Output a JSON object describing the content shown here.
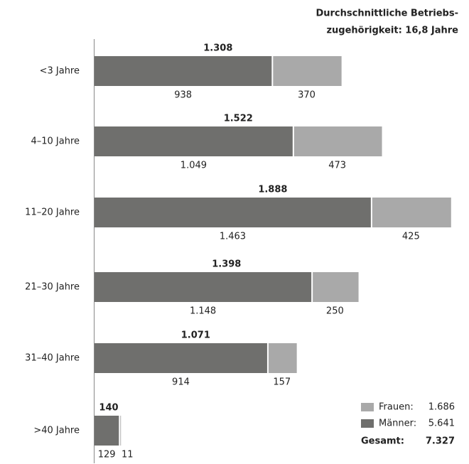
{
  "chart_data": {
    "type": "bar",
    "orientation": "horizontal",
    "stacked": true,
    "title_lines": [
      "Durchschnittliche Betriebs-",
      "zugehörigkeit: 16,8 Jahre"
    ],
    "categories": [
      "<3 Jahre",
      "4–10 Jahre",
      "11–20 Jahre",
      "21–30 Jahre",
      "31–40 Jahre",
      ">40 Jahre"
    ],
    "series": [
      {
        "name": "Männer:",
        "color": "#6f6f6d",
        "values": [
          938,
          1049,
          1463,
          1148,
          914,
          129
        ],
        "value_labels": [
          "938",
          "1.049",
          "1.463",
          "1.148",
          "914",
          "129"
        ],
        "total": 5641,
        "total_label": "5.641"
      },
      {
        "name": "Frauen:",
        "color": "#a9a9a9",
        "values": [
          370,
          473,
          425,
          250,
          157,
          11
        ],
        "value_labels": [
          "370",
          "473",
          "425",
          "250",
          "157",
          "11"
        ],
        "total": 1686,
        "total_label": "1.686"
      }
    ],
    "totals": {
      "values": [
        1308,
        1522,
        1888,
        1398,
        1071,
        140
      ],
      "value_labels": [
        "1.308",
        "1.522",
        "1.888",
        "1.398",
        "1.071",
        "140"
      ]
    },
    "grand_total": {
      "label": "Gesamt:",
      "value": 7327,
      "value_label": "7.327"
    },
    "xlim": [
      0,
      1900
    ]
  }
}
